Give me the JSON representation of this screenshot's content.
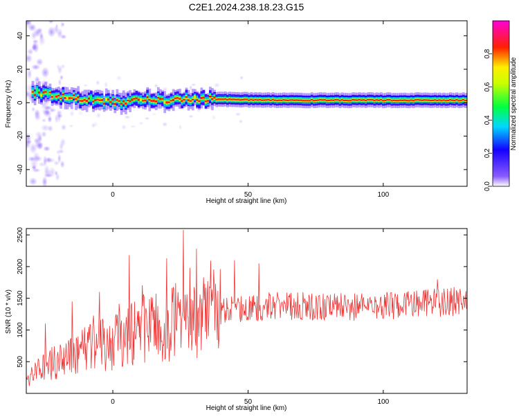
{
  "page_title": "C2E1.2024.238.18.23.G15",
  "chart_data": [
    {
      "type": "heatmap",
      "xlabel": "Height of straight line (km)",
      "ylabel": "Frequency (Hz)",
      "xlim": [
        -32,
        131
      ],
      "ylim": [
        -50,
        49
      ],
      "xticks": [
        0,
        50,
        100
      ],
      "yticks": [
        -40,
        -20,
        0,
        20,
        40
      ],
      "grid": false,
      "colorbar": {
        "label": "Normalized spectral amplitude",
        "range": [
          0,
          1
        ],
        "ticks": [
          0.0,
          0.2,
          0.4,
          0.6,
          0.8
        ],
        "colormap": "rainbow (violet → blue → cyan → green → yellow → red → magenta)"
      },
      "ridge_center_hz": [
        {
          "x": -30,
          "y": 6
        },
        {
          "x": -25,
          "y": 5
        },
        {
          "x": -20,
          "y": 4
        },
        {
          "x": -15,
          "y": 3
        },
        {
          "x": -10,
          "y": 2
        },
        {
          "x": -5,
          "y": 1
        },
        {
          "x": 0,
          "y": 0.5
        },
        {
          "x": 5,
          "y": 1
        },
        {
          "x": 10,
          "y": 2.5
        },
        {
          "x": 15,
          "y": 2
        },
        {
          "x": 20,
          "y": 1.5
        },
        {
          "x": 25,
          "y": 2
        },
        {
          "x": 30,
          "y": 2.5
        },
        {
          "x": 40,
          "y": 2
        },
        {
          "x": 60,
          "y": 1.5
        },
        {
          "x": 80,
          "y": 1.5
        },
        {
          "x": 100,
          "y": 1.5
        },
        {
          "x": 131,
          "y": 1.5
        }
      ]
    },
    {
      "type": "line",
      "xlabel": "Height of straight line (km)",
      "ylabel": "SNR (10 * v/v)",
      "xlim": [
        -32,
        131
      ],
      "ylim": [
        0,
        2600
      ],
      "xticks": [
        0,
        50,
        100
      ],
      "yticks": [
        500,
        1000,
        1500,
        2000,
        2500
      ],
      "grid": false,
      "color": "#ee3333",
      "series": [
        {
          "x": [
            -32,
            -25,
            -20,
            -15,
            -10,
            -5,
            0,
            5,
            10,
            15,
            20,
            25,
            30,
            35,
            40,
            50,
            60,
            70,
            80,
            90,
            100,
            110,
            120,
            131
          ],
          "y": [
            200,
            450,
            500,
            600,
            700,
            750,
            800,
            900,
            1000,
            1050,
            1100,
            1150,
            1150,
            1250,
            1300,
            1350,
            1380,
            1380,
            1370,
            1360,
            1380,
            1400,
            1430,
            1460
          ]
        }
      ],
      "spikes": [
        {
          "x": -25,
          "y": 1100
        },
        {
          "x": -15,
          "y": 1450
        },
        {
          "x": -5,
          "y": 1600
        },
        {
          "x": 6,
          "y": 2180
        },
        {
          "x": 20,
          "y": 2130
        },
        {
          "x": 26,
          "y": 2580
        },
        {
          "x": 31,
          "y": 2280
        },
        {
          "x": 45,
          "y": 2100
        },
        {
          "x": 54,
          "y": 2050
        },
        {
          "x": 120,
          "y": 1800
        }
      ]
    }
  ]
}
